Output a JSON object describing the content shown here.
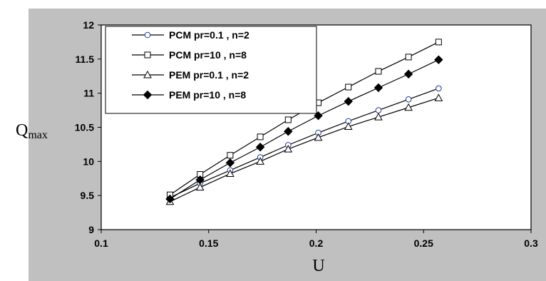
{
  "chart_data": {
    "type": "line",
    "title": "",
    "xlabel": "U",
    "ylabel": {
      "main": "Q",
      "subscript": "max"
    },
    "xlim": [
      0.1,
      0.3
    ],
    "ylim": [
      9,
      12
    ],
    "xticks": [
      "0.1",
      "0.15",
      "0.2",
      "0.25",
      "0.3"
    ],
    "yticks": [
      "9",
      "9.5",
      "10",
      "10.5",
      "11",
      "11.5",
      "12"
    ],
    "grid": false,
    "legend_position": "top-left",
    "x": [
      0.132,
      0.146,
      0.16,
      0.174,
      0.187,
      0.201,
      0.215,
      0.229,
      0.243,
      0.257
    ],
    "series": [
      {
        "name": "PCM pr=0.1 , n=2",
        "marker": "circle",
        "marker_fill": "#ffffff",
        "marker_stroke": "#1f3a93",
        "line_color": "#000000",
        "values": [
          9.47,
          9.68,
          9.87,
          10.06,
          10.24,
          10.42,
          10.59,
          10.75,
          10.91,
          11.07
        ]
      },
      {
        "name": "PCM pr=10 , n=8",
        "marker": "square",
        "marker_fill": "#ffffff",
        "marker_stroke": "#000000",
        "line_color": "#000000",
        "values": [
          9.51,
          9.81,
          10.09,
          10.36,
          10.61,
          10.86,
          11.09,
          11.32,
          11.53,
          11.75
        ]
      },
      {
        "name": "PEM pr=0.1 , n=2",
        "marker": "triangle",
        "marker_fill": "#ffffff",
        "marker_stroke": "#000000",
        "line_color": "#000000",
        "values": [
          9.41,
          9.62,
          9.82,
          10.0,
          10.18,
          10.35,
          10.51,
          10.65,
          10.79,
          10.93
        ]
      },
      {
        "name": "PEM pr=10 , n=8",
        "marker": "diamond",
        "marker_fill": "#000000",
        "marker_stroke": "#000000",
        "line_color": "#000000",
        "values": [
          9.45,
          9.73,
          9.98,
          10.21,
          10.44,
          10.67,
          10.88,
          11.08,
          11.28,
          11.49
        ]
      }
    ]
  },
  "colors": {
    "outer_background": "#c0c0c0",
    "plot_background": "#ffffff",
    "axis": "#000000"
  }
}
